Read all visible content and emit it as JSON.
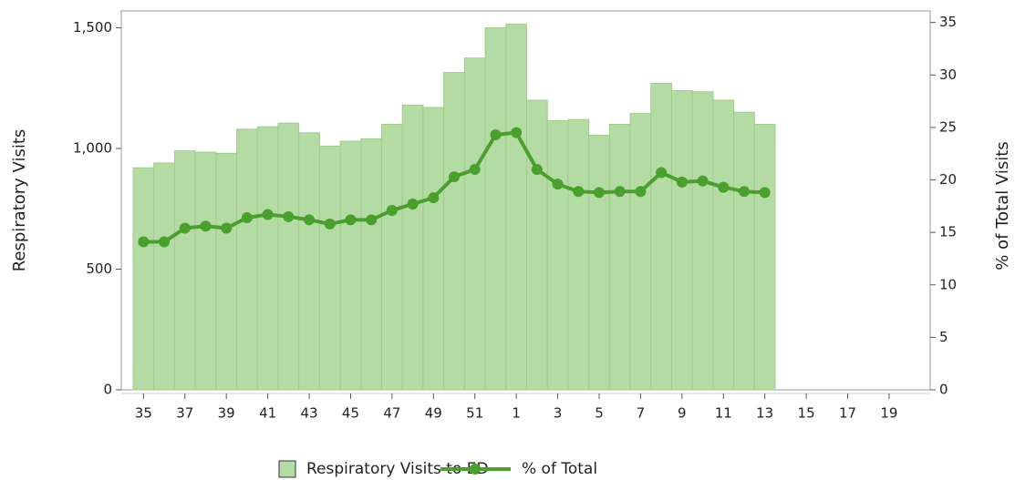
{
  "chart_data": {
    "type": "bar-line",
    "categories": [
      "35",
      null,
      "37",
      null,
      "39",
      null,
      "41",
      null,
      "43",
      null,
      "45",
      null,
      "47",
      null,
      "49",
      null,
      "51",
      null,
      "1",
      null,
      "3",
      null,
      "5",
      null,
      "7",
      null,
      "9",
      null,
      "11",
      null,
      "13",
      null,
      "15",
      null,
      "17",
      null,
      "19",
      null
    ],
    "series": [
      {
        "name": "Respiratory Visits to ED",
        "type": "bar",
        "color": "#b5dba4",
        "axis": "y",
        "values": [
          920,
          940,
          990,
          985,
          980,
          1080,
          1090,
          1105,
          1065,
          1010,
          1030,
          1040,
          1100,
          1180,
          1170,
          1315,
          1375,
          1500,
          1515,
          1200,
          1115,
          1120,
          1055,
          1100,
          1145,
          1270,
          1240,
          1235,
          1200,
          1150,
          1100,
          null,
          null,
          null,
          null,
          null,
          null,
          null
        ]
      },
      {
        "name": "% of Total",
        "type": "line",
        "color": "#4aa02c",
        "axis": "y2",
        "values": [
          14.1,
          14.1,
          15.4,
          15.6,
          15.4,
          16.4,
          16.7,
          16.5,
          16.2,
          15.8,
          16.2,
          16.2,
          17.1,
          17.7,
          18.3,
          20.3,
          21.0,
          24.3,
          24.5,
          21.0,
          19.6,
          18.9,
          18.8,
          18.9,
          18.9,
          20.7,
          19.8,
          19.9,
          19.3,
          18.9,
          18.8,
          null,
          null,
          null,
          null,
          null,
          null,
          null
        ]
      }
    ],
    "ylabel": "Respiratory Visits",
    "y2label": "% of Total Visits",
    "ylim": [
      0,
      1570
    ],
    "yticks": [
      0,
      500,
      {
        "value": 1000,
        "label": "1,000"
      },
      {
        "value": 1500,
        "label": "1,500"
      }
    ],
    "y2lim": [
      0,
      36.1
    ],
    "y2ticks": [
      0,
      5,
      10,
      15,
      20,
      25,
      30,
      35
    ]
  }
}
